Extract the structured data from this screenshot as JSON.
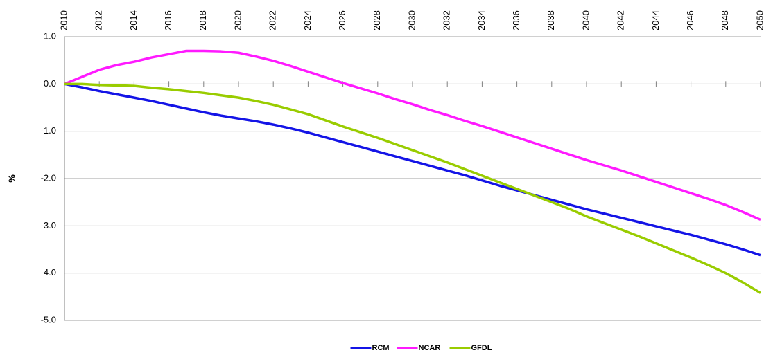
{
  "chart_data": {
    "type": "line",
    "y_label": "%",
    "x": [
      2010,
      2011,
      2012,
      2013,
      2014,
      2015,
      2016,
      2017,
      2018,
      2019,
      2020,
      2021,
      2022,
      2023,
      2024,
      2025,
      2026,
      2027,
      2028,
      2029,
      2030,
      2031,
      2032,
      2033,
      2034,
      2035,
      2036,
      2037,
      2038,
      2039,
      2040,
      2041,
      2042,
      2043,
      2044,
      2045,
      2046,
      2047,
      2048,
      2049,
      2050
    ],
    "xlim": [
      2010,
      2050
    ],
    "xticks": [
      2010,
      2012,
      2014,
      2016,
      2018,
      2020,
      2022,
      2024,
      2026,
      2028,
      2030,
      2032,
      2034,
      2036,
      2038,
      2040,
      2042,
      2044,
      2046,
      2048,
      2050
    ],
    "ylim": [
      -5,
      1
    ],
    "yticks": [
      {
        "value": 1,
        "label": "1.0"
      },
      {
        "value": 0,
        "label": "0.0"
      },
      {
        "value": -1,
        "label": "-1.0"
      },
      {
        "value": -2,
        "label": "-2.0"
      },
      {
        "value": -3,
        "label": "-3.0"
      },
      {
        "value": -4,
        "label": "-4.0"
      },
      {
        "value": -5,
        "label": "-5.0"
      }
    ],
    "grid": true,
    "legend": "bottom",
    "series": [
      {
        "name": "RCM",
        "color": "#1414e6",
        "values": [
          0,
          -0.07,
          -0.15,
          -0.22,
          -0.29,
          -0.36,
          -0.44,
          -0.52,
          -0.6,
          -0.67,
          -0.73,
          -0.79,
          -0.86,
          -0.94,
          -1.03,
          -1.13,
          -1.23,
          -1.33,
          -1.43,
          -1.53,
          -1.63,
          -1.73,
          -1.83,
          -1.93,
          -2.04,
          -2.15,
          -2.25,
          -2.35,
          -2.45,
          -2.55,
          -2.65,
          -2.74,
          -2.83,
          -2.92,
          -3.01,
          -3.1,
          -3.19,
          -3.29,
          -3.39,
          -3.5,
          -3.62
        ]
      },
      {
        "name": "NCAR",
        "color": "#ff1aff",
        "values": [
          0,
          0.15,
          0.3,
          0.4,
          0.47,
          0.56,
          0.63,
          0.7,
          0.7,
          0.69,
          0.66,
          0.58,
          0.49,
          0.38,
          0.26,
          0.14,
          0.02,
          -0.09,
          -0.2,
          -0.32,
          -0.43,
          -0.55,
          -0.66,
          -0.78,
          -0.89,
          -1.01,
          -1.13,
          -1.25,
          -1.37,
          -1.49,
          -1.61,
          -1.72,
          -1.83,
          -1.95,
          -2.07,
          -2.19,
          -2.31,
          -2.43,
          -2.56,
          -2.71,
          -2.87
        ]
      },
      {
        "name": "GFDL",
        "color": "#99cc00",
        "values": [
          0,
          0,
          -0.02,
          -0.03,
          -0.04,
          -0.08,
          -0.11,
          -0.15,
          -0.19,
          -0.24,
          -0.29,
          -0.36,
          -0.44,
          -0.54,
          -0.64,
          -0.77,
          -0.9,
          -1.02,
          -1.14,
          -1.27,
          -1.4,
          -1.53,
          -1.66,
          -1.8,
          -1.94,
          -2.08,
          -2.22,
          -2.36,
          -2.5,
          -2.64,
          -2.8,
          -2.94,
          -3.08,
          -3.22,
          -3.37,
          -3.52,
          -3.67,
          -3.83,
          -4.0,
          -4.2,
          -4.42
        ]
      }
    ]
  }
}
